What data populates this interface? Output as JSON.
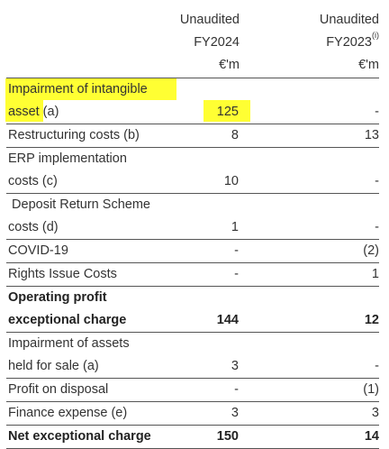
{
  "header": {
    "col1": {
      "line1": "Unaudited",
      "line2": "FY2024",
      "unit": "€'m"
    },
    "col2": {
      "line1": "Unaudited",
      "line2": "FY2023",
      "note": "(i)",
      "unit": "€'m"
    }
  },
  "highlight_color": "#ffff33",
  "rows": [
    {
      "label_lines": [
        "Impairment of intangible",
        "asset (a)"
      ],
      "fy2024": "125",
      "fy2023": "-",
      "bold": false,
      "highlighted": true
    },
    {
      "label_lines": [
        "Restructuring costs (b)"
      ],
      "fy2024": "8",
      "fy2023": "13",
      "bold": false
    },
    {
      "label_lines": [
        "ERP implementation",
        "costs (c)"
      ],
      "fy2024": "10",
      "fy2023": "-",
      "bold": false
    },
    {
      "label_lines": [
        " Deposit Return Scheme",
        "costs (d)"
      ],
      "fy2024": "1",
      "fy2023": "-",
      "bold": false
    },
    {
      "label_lines": [
        "COVID-19"
      ],
      "fy2024": "-",
      "fy2023": "(2)",
      "bold": false
    },
    {
      "label_lines": [
        "Rights Issue Costs"
      ],
      "fy2024": "-",
      "fy2023": "1",
      "bold": false
    },
    {
      "label_lines": [
        "Operating profit",
        "exceptional charge"
      ],
      "fy2024": "144",
      "fy2023": "12",
      "bold": true
    },
    {
      "label_lines": [
        "Impairment of assets",
        "held for sale (a)"
      ],
      "fy2024": "3",
      "fy2023": "-",
      "bold": false
    },
    {
      "label_lines": [
        "Profit on disposal"
      ],
      "fy2024": "-",
      "fy2023": "(1)",
      "bold": false
    },
    {
      "label_lines": [
        "Finance expense (e)"
      ],
      "fy2024": "3",
      "fy2023": "3",
      "bold": false
    },
    {
      "label_lines": [
        "Net exceptional charge"
      ],
      "fy2024": "150",
      "fy2023": "14",
      "bold": true
    }
  ]
}
